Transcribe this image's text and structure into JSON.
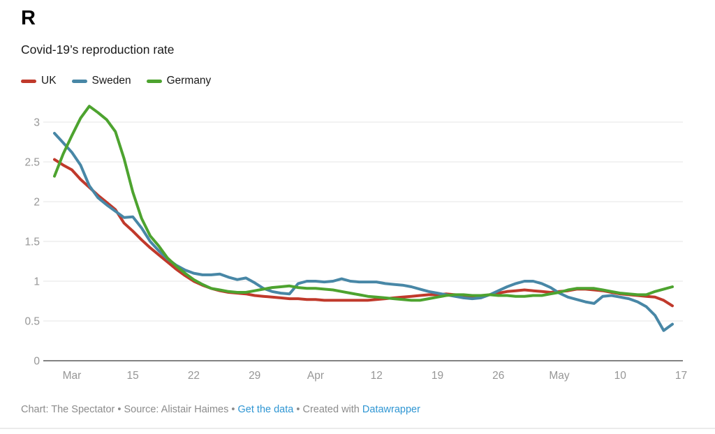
{
  "header": {
    "title": "R",
    "subtitle": "Covid-19’s reproduction rate"
  },
  "legend": {
    "items": [
      {
        "label": "UK",
        "color": "#c0392b"
      },
      {
        "label": "Sweden",
        "color": "#4887a6"
      },
      {
        "label": "Germany",
        "color": "#4da32f"
      }
    ]
  },
  "chart_data": {
    "type": "line",
    "title": "R",
    "subtitle": "Covid-19’s reproduction rate",
    "x_unit": "daily dates from 2020-03-06 to 2020-05-16 (one value per day)",
    "x_tick_labels": [
      "Mar",
      "15",
      "22",
      "29",
      "Apr",
      "12",
      "19",
      "26",
      "May",
      "10",
      "17"
    ],
    "x_tick_day_index": [
      2,
      9,
      16,
      23,
      30,
      37,
      44,
      51,
      58,
      65,
      72
    ],
    "y_ticks": [
      0,
      0.5,
      1,
      1.5,
      2,
      2.5,
      3
    ],
    "ylim": [
      0,
      3.3
    ],
    "grid": "horizontal",
    "legend_position": "top-left",
    "axis_text_color": "#969696",
    "grid_color": "#e4e4e4",
    "baseline_color": "#828282",
    "series": [
      {
        "name": "UK",
        "color": "#c0392b",
        "values": [
          2.53,
          2.46,
          2.4,
          2.28,
          2.18,
          2.08,
          1.99,
          1.9,
          1.73,
          1.63,
          1.52,
          1.42,
          1.33,
          1.24,
          1.15,
          1.07,
          1.0,
          0.95,
          0.91,
          0.88,
          0.86,
          0.85,
          0.84,
          0.82,
          0.81,
          0.8,
          0.79,
          0.78,
          0.78,
          0.77,
          0.77,
          0.76,
          0.76,
          0.76,
          0.76,
          0.76,
          0.76,
          0.77,
          0.78,
          0.79,
          0.8,
          0.81,
          0.82,
          0.83,
          0.83,
          0.84,
          0.83,
          0.82,
          0.8,
          0.81,
          0.83,
          0.85,
          0.87,
          0.88,
          0.89,
          0.88,
          0.87,
          0.86,
          0.87,
          0.88,
          0.9,
          0.9,
          0.89,
          0.88,
          0.86,
          0.84,
          0.83,
          0.82,
          0.81,
          0.8,
          0.76,
          0.69
        ]
      },
      {
        "name": "Sweden",
        "color": "#4887a6",
        "values": [
          2.86,
          2.74,
          2.62,
          2.46,
          2.2,
          2.05,
          1.96,
          1.88,
          1.8,
          1.81,
          1.67,
          1.5,
          1.38,
          1.28,
          1.2,
          1.14,
          1.1,
          1.08,
          1.08,
          1.09,
          1.05,
          1.02,
          1.04,
          0.98,
          0.91,
          0.87,
          0.85,
          0.84,
          0.97,
          1.0,
          1.0,
          0.99,
          1.0,
          1.03,
          1.0,
          0.99,
          0.99,
          0.99,
          0.97,
          0.96,
          0.95,
          0.93,
          0.9,
          0.87,
          0.85,
          0.83,
          0.81,
          0.79,
          0.78,
          0.79,
          0.83,
          0.88,
          0.93,
          0.97,
          1.0,
          1.0,
          0.97,
          0.92,
          0.85,
          0.8,
          0.77,
          0.74,
          0.72,
          0.81,
          0.82,
          0.8,
          0.78,
          0.74,
          0.68,
          0.57,
          0.38,
          0.46
        ]
      },
      {
        "name": "Germany",
        "color": "#4da32f",
        "values": [
          2.32,
          2.6,
          2.83,
          3.05,
          3.2,
          3.12,
          3.03,
          2.88,
          2.54,
          2.12,
          1.79,
          1.57,
          1.44,
          1.29,
          1.19,
          1.1,
          1.02,
          0.96,
          0.91,
          0.89,
          0.87,
          0.86,
          0.86,
          0.88,
          0.9,
          0.92,
          0.93,
          0.94,
          0.92,
          0.91,
          0.91,
          0.9,
          0.89,
          0.87,
          0.85,
          0.83,
          0.81,
          0.8,
          0.79,
          0.78,
          0.77,
          0.76,
          0.76,
          0.78,
          0.8,
          0.82,
          0.83,
          0.83,
          0.82,
          0.82,
          0.83,
          0.82,
          0.82,
          0.81,
          0.81,
          0.82,
          0.82,
          0.84,
          0.86,
          0.89,
          0.91,
          0.91,
          0.91,
          0.89,
          0.87,
          0.85,
          0.84,
          0.83,
          0.83,
          0.87,
          0.9,
          0.93
        ]
      }
    ]
  },
  "footer": {
    "credit": "Chart: The Spectator",
    "sep1": " • ",
    "source": "Source: Alistair Haimes",
    "sep2": " • ",
    "link_get_data": "Get the data",
    "sep3": " • ",
    "created_with": "Created with ",
    "link_datawrapper": "Datawrapper"
  }
}
